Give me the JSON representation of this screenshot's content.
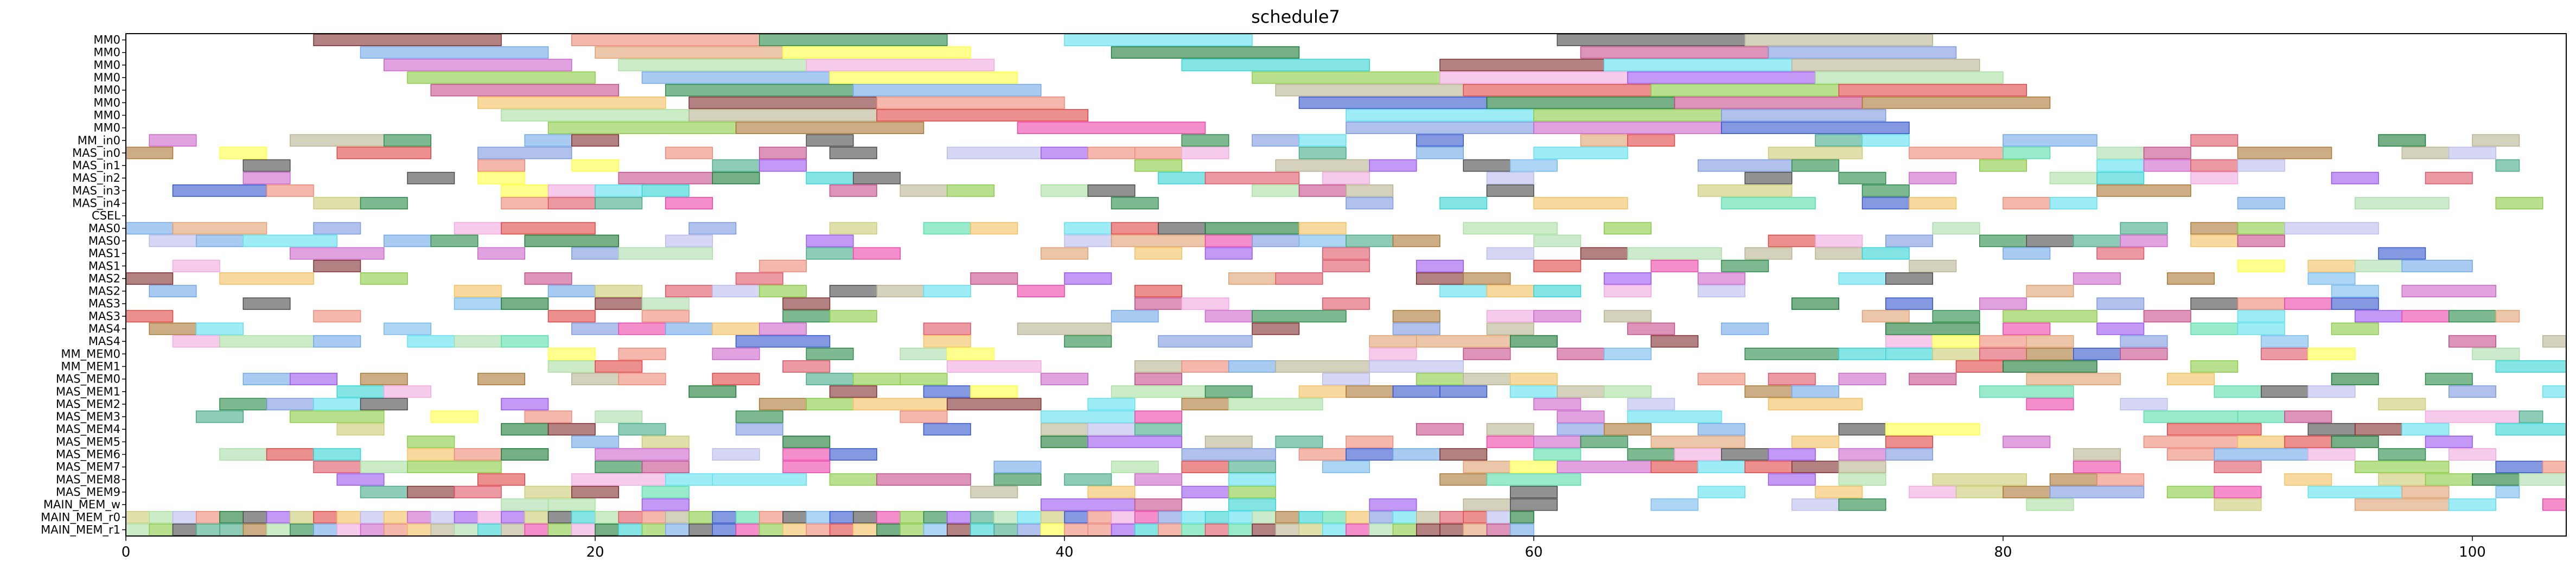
{
  "chart_data": {
    "type": "gantt",
    "title": "schedule7",
    "xlim": [
      0,
      104
    ],
    "x_ticks": [
      0,
      20,
      40,
      60,
      80,
      100
    ],
    "x_tick_labels": [
      "0",
      "20",
      "40",
      "60",
      "80",
      "100"
    ],
    "grid": false,
    "rows": [
      "MM0",
      "MM0",
      "MM0",
      "MM0",
      "MM0",
      "MM0",
      "MM0",
      "MM0",
      "MM_in0",
      "MAS_in0",
      "MAS_in1",
      "MAS_in2",
      "MAS_in3",
      "MAS_in4",
      "CSEL",
      "MAS0",
      "MAS0",
      "MAS1",
      "MAS1",
      "MAS2",
      "MAS2",
      "MAS3",
      "MAS3",
      "MAS4",
      "MAS4",
      "MM_MEM0",
      "MM_MEM1",
      "MAS_MEM0",
      "MAS_MEM1",
      "MAS_MEM2",
      "MAS_MEM3",
      "MAS_MEM4",
      "MAS_MEM5",
      "MAS_MEM6",
      "MAS_MEM7",
      "MAS_MEM8",
      "MAS_MEM9",
      "MAIN_MEM_w",
      "MAIN_MEM_r0",
      "MAIN_MEM_r1"
    ],
    "palette": [
      "#7f2d2d",
      "#ee8877",
      "#2a8a4a",
      "#5ee0ee",
      "#4a4a4a",
      "#b8b290",
      "#6fa8e8",
      "#e0a070",
      "#ffff44",
      "#f2a8e0",
      "#1a7a36",
      "#33d4d4",
      "#c44d8a",
      "#7c9ae0",
      "#a8e0a0",
      "#aaddaa",
      "#cc66cc",
      "#e04444",
      "#3355cc",
      "#88cc44",
      "#9955ee",
      "#f4c060",
      "#ee44aa",
      "#44aa88",
      "#aa7733",
      "#77bbee",
      "#cccc77",
      "#dd5566",
      "#55ddaa",
      "#bbbbee"
    ],
    "bars": [
      {
        "row": 0,
        "start": 8,
        "end": 16,
        "c": 0
      },
      {
        "row": 0,
        "start": 19,
        "end": 27,
        "c": 1
      },
      {
        "row": 0,
        "start": 27,
        "end": 35,
        "c": 2
      },
      {
        "row": 0,
        "start": 40,
        "end": 48,
        "c": 3
      },
      {
        "row": 0,
        "start": 61,
        "end": 69,
        "c": 4
      },
      {
        "row": 0,
        "start": 69,
        "end": 77,
        "c": 5
      },
      {
        "row": 1,
        "start": 10,
        "end": 18,
        "c": 6
      },
      {
        "row": 1,
        "start": 20,
        "end": 28,
        "c": 7
      },
      {
        "row": 1,
        "start": 28,
        "end": 36,
        "c": 8
      },
      {
        "row": 1,
        "start": 42,
        "end": 50,
        "c": 10
      },
      {
        "row": 1,
        "start": 62,
        "end": 70,
        "c": 12
      },
      {
        "row": 1,
        "start": 70,
        "end": 78,
        "c": 13
      },
      {
        "row": 2,
        "start": 11,
        "end": 19,
        "c": 16
      },
      {
        "row": 2,
        "start": 21,
        "end": 29,
        "c": 14
      },
      {
        "row": 2,
        "start": 29,
        "end": 37,
        "c": 9
      },
      {
        "row": 2,
        "start": 45,
        "end": 53,
        "c": 11
      },
      {
        "row": 2,
        "start": 56,
        "end": 63,
        "c": 0
      },
      {
        "row": 2,
        "start": 63,
        "end": 71,
        "c": 3
      },
      {
        "row": 2,
        "start": 71,
        "end": 79,
        "c": 5
      },
      {
        "row": 3,
        "start": 12,
        "end": 20,
        "c": 19
      },
      {
        "row": 3,
        "start": 22,
        "end": 30,
        "c": 6
      },
      {
        "row": 3,
        "start": 30,
        "end": 38,
        "c": 8
      },
      {
        "row": 3,
        "start": 48,
        "end": 56,
        "c": 19
      },
      {
        "row": 3,
        "start": 56,
        "end": 64,
        "c": 9
      },
      {
        "row": 3,
        "start": 64,
        "end": 72,
        "c": 20
      },
      {
        "row": 3,
        "start": 72,
        "end": 80,
        "c": 14
      },
      {
        "row": 4,
        "start": 13,
        "end": 21,
        "c": 12
      },
      {
        "row": 4,
        "start": 23,
        "end": 31,
        "c": 2
      },
      {
        "row": 4,
        "start": 31,
        "end": 39,
        "c": 6
      },
      {
        "row": 4,
        "start": 49,
        "end": 57,
        "c": 5
      },
      {
        "row": 4,
        "start": 57,
        "end": 65,
        "c": 17
      },
      {
        "row": 4,
        "start": 65,
        "end": 73,
        "c": 19
      },
      {
        "row": 4,
        "start": 73,
        "end": 81,
        "c": 17
      },
      {
        "row": 5,
        "start": 15,
        "end": 23,
        "c": 21
      },
      {
        "row": 5,
        "start": 24,
        "end": 32,
        "c": 0
      },
      {
        "row": 5,
        "start": 32,
        "end": 40,
        "c": 1
      },
      {
        "row": 5,
        "start": 50,
        "end": 58,
        "c": 18
      },
      {
        "row": 5,
        "start": 58,
        "end": 66,
        "c": 10
      },
      {
        "row": 5,
        "start": 66,
        "end": 74,
        "c": 12
      },
      {
        "row": 5,
        "start": 74,
        "end": 82,
        "c": 24
      },
      {
        "row": 6,
        "start": 16,
        "end": 24,
        "c": 14
      },
      {
        "row": 6,
        "start": 24,
        "end": 32,
        "c": 5
      },
      {
        "row": 6,
        "start": 32,
        "end": 41,
        "c": 17
      },
      {
        "row": 6,
        "start": 52,
        "end": 60,
        "c": 3
      },
      {
        "row": 6,
        "start": 60,
        "end": 68,
        "c": 19
      },
      {
        "row": 6,
        "start": 68,
        "end": 75,
        "c": 13
      },
      {
        "row": 7,
        "start": 18,
        "end": 26,
        "c": 19
      },
      {
        "row": 7,
        "start": 26,
        "end": 34,
        "c": 24
      },
      {
        "row": 7,
        "start": 38,
        "end": 46,
        "c": 22
      },
      {
        "row": 7,
        "start": 52,
        "end": 60,
        "c": 13
      },
      {
        "row": 7,
        "start": 60,
        "end": 68,
        "c": 16
      },
      {
        "row": 7,
        "start": 68,
        "end": 76,
        "c": 18
      }
    ],
    "dense_rows": [
      8,
      9,
      10,
      11,
      12,
      13,
      15,
      16,
      17,
      18,
      19,
      20,
      21,
      22,
      23,
      24,
      25,
      26,
      27,
      28,
      29,
      30,
      31,
      32,
      33,
      34,
      35,
      36,
      37,
      38,
      39
    ],
    "dense_spans": [
      [
        1,
        104
      ],
      [
        0,
        102
      ],
      [
        0,
        102
      ],
      [
        3,
        100
      ],
      [
        2,
        103
      ],
      [
        6,
        103
      ],
      [
        0,
        97
      ],
      [
        1,
        96
      ],
      [
        1,
        99
      ],
      [
        2,
        100
      ],
      [
        0,
        101
      ],
      [
        1,
        104
      ],
      [
        1,
        101
      ],
      [
        0,
        102
      ],
      [
        1,
        103
      ],
      [
        2,
        104
      ],
      [
        18,
        104
      ],
      [
        18,
        104
      ],
      [
        5,
        102
      ],
      [
        5,
        104
      ],
      [
        4,
        102
      ],
      [
        3,
        103
      ],
      [
        9,
        104
      ],
      [
        10,
        103
      ],
      [
        2,
        102
      ],
      [
        8,
        104
      ],
      [
        9,
        104
      ],
      [
        10,
        102
      ],
      [
        16,
        104
      ],
      [
        0,
        60
      ],
      [
        0,
        60
      ]
    ]
  }
}
